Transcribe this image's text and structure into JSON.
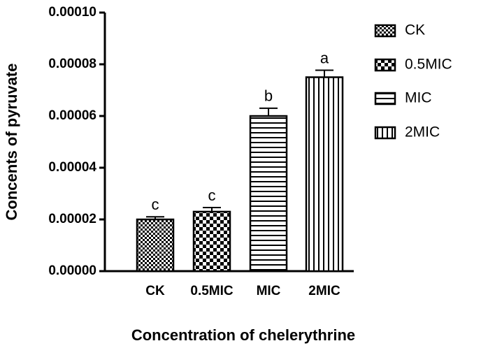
{
  "chart_data": {
    "type": "bar",
    "x_label": "Concentration of chelerythrine",
    "y_label": "Concents of pyruvate",
    "categories": [
      "CK",
      "0.5MIC",
      "MIC",
      "2MIC"
    ],
    "values": [
      2e-05,
      2.3e-05,
      6e-05,
      7.5e-05
    ],
    "errors": [
      1e-06,
      1.6e-06,
      3e-06,
      2.7e-06
    ],
    "annotations": [
      "c",
      "c",
      "b",
      "a"
    ],
    "patterns": [
      "fine-check",
      "check",
      "horizontal",
      "vertical"
    ],
    "ylim": [
      0,
      0.0001
    ],
    "yticks": [
      {
        "value": 0,
        "label": "0.00000"
      },
      {
        "value": 2e-05,
        "label": "0.00002"
      },
      {
        "value": 4e-05,
        "label": "0.00004"
      },
      {
        "value": 6e-05,
        "label": "0.00006"
      },
      {
        "value": 8e-05,
        "label": "0.00008"
      },
      {
        "value": 0.0001,
        "label": "0.00010"
      }
    ],
    "legend": "right"
  }
}
